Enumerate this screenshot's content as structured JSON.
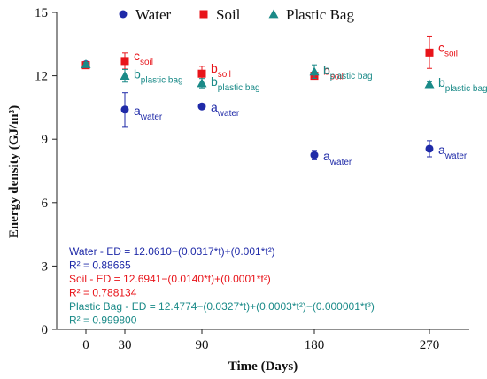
{
  "chart_data": {
    "type": "scatter",
    "xlabel": "Time (Days)",
    "ylabel": "Energy density (GJ/m³)",
    "x_ticks": [
      0,
      30,
      90,
      180,
      270
    ],
    "y_ticks": [
      0,
      3,
      6,
      9,
      12,
      15
    ],
    "ylim": [
      0,
      15
    ],
    "grid": false,
    "legend_position": "top",
    "series": [
      {
        "name": "Water",
        "marker": "circle",
        "color": "#1f2aa8",
        "label_color": "#1f2aa8",
        "points": [
          {
            "x": 0,
            "y": 12.55,
            "err": 0.08,
            "label": ""
          },
          {
            "x": 30,
            "y": 10.4,
            "err": 0.8,
            "label": "a",
            "sub": "water"
          },
          {
            "x": 90,
            "y": 10.55,
            "err": 0.12,
            "label": "a",
            "sub": "water"
          },
          {
            "x": 180,
            "y": 8.25,
            "err": 0.22,
            "label": "a",
            "sub": "water"
          },
          {
            "x": 270,
            "y": 8.55,
            "err": 0.38,
            "label": "a",
            "sub": "water"
          }
        ]
      },
      {
        "name": "Soil",
        "marker": "square",
        "color": "#e8141a",
        "label_color": "#e8141a",
        "points": [
          {
            "x": 0,
            "y": 12.5,
            "err": 0.08,
            "label": ""
          },
          {
            "x": 30,
            "y": 12.7,
            "err": 0.38,
            "label": "c",
            "sub": "soil"
          },
          {
            "x": 90,
            "y": 12.1,
            "err": 0.35,
            "label": "b",
            "sub": "soil"
          },
          {
            "x": 180,
            "y": 12.0,
            "err": 0.1,
            "label": "b",
            "sub": "soil"
          },
          {
            "x": 270,
            "y": 13.1,
            "err": 0.75,
            "label": "c",
            "sub": "soil"
          }
        ]
      },
      {
        "name": "Plastic Bag",
        "marker": "triangle",
        "color": "#1a8a88",
        "label_color": "#1a8a88",
        "points": [
          {
            "x": 0,
            "y": 12.55,
            "err": 0.08,
            "label": ""
          },
          {
            "x": 30,
            "y": 12.0,
            "err": 0.3,
            "label": "b",
            "sub": "plastic bag"
          },
          {
            "x": 90,
            "y": 11.65,
            "err": 0.22,
            "label": "b",
            "sub": "plastic bag"
          },
          {
            "x": 180,
            "y": 12.2,
            "err": 0.32,
            "label": "b",
            "sub": "plastic bag"
          },
          {
            "x": 270,
            "y": 11.6,
            "err": 0.12,
            "label": "b",
            "sub": "plastic bag"
          }
        ]
      }
    ],
    "annotations": [
      {
        "text": "Water - ED = 12.0610−(0.0317*t)+(0.001*t²)",
        "color": "#1f2aa8"
      },
      {
        "text": "R² = 0.88665",
        "color": "#1f2aa8"
      },
      {
        "text": "Soil  - ED = 12.6941−(0.0140*t)+(0.0001*t²)",
        "color": "#e8141a"
      },
      {
        "text": "R² = 0.788134",
        "color": "#e8141a"
      },
      {
        "text": "Plastic Bag - ED = 12.4774−(0.0327*t)+(0.0003*t²)−(0.000001*t³)",
        "color": "#1a8a88"
      },
      {
        "text": "R² = 0.999800",
        "color": "#1a8a88"
      }
    ]
  }
}
